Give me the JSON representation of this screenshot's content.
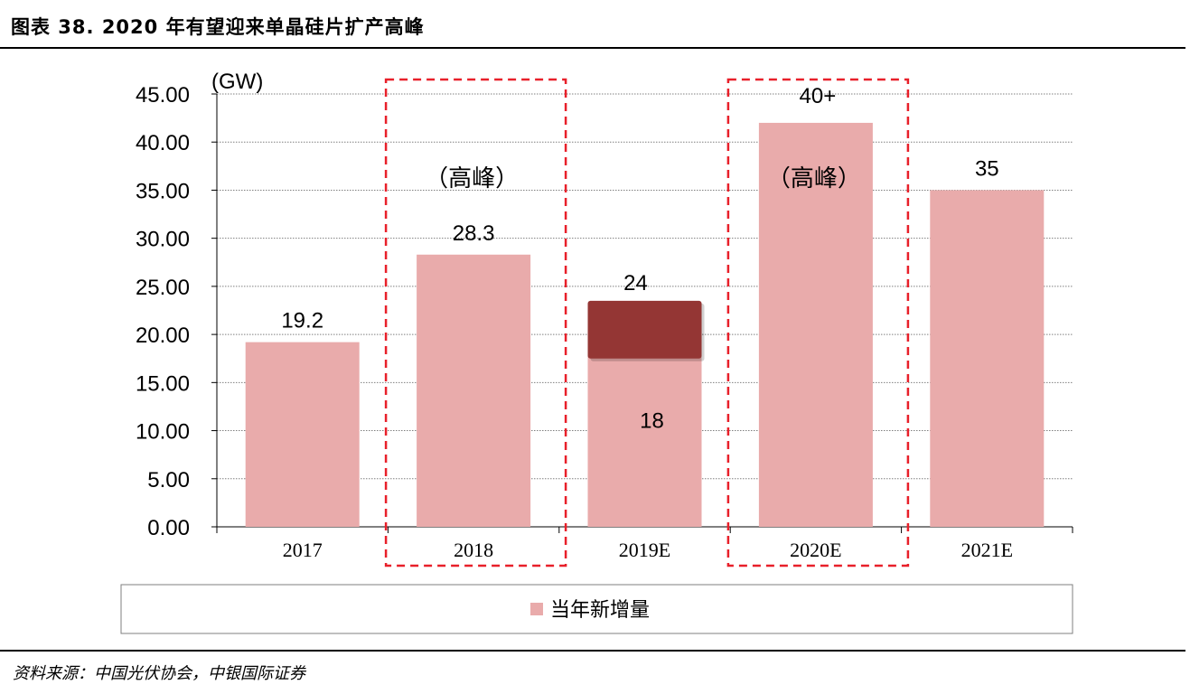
{
  "title": "图表 38. 2020 年有望迎来单晶硅片扩产高峰",
  "source": "资料来源：中国光伏协会，中银国际证券",
  "colors": {
    "bar": "#E9ABAB",
    "overlay": "#943634",
    "highlight_box": "#E8202A",
    "grid": "#7F7F7F"
  },
  "chart_data": {
    "type": "bar",
    "title": "",
    "ylabel": "(GW)",
    "xlabel": "",
    "ylim": [
      0,
      45
    ],
    "yticks": [
      "0.00",
      "5.00",
      "10.00",
      "15.00",
      "20.00",
      "25.00",
      "30.00",
      "35.00",
      "40.00",
      "45.00"
    ],
    "categories": [
      "2017",
      "2018",
      "2019E",
      "2020E",
      "2021E"
    ],
    "series": [
      {
        "name": "当年新增量",
        "values": [
          19.2,
          28.3,
          18,
          42,
          35
        ],
        "labels": [
          "19.2",
          "28.3",
          "18",
          "40+",
          "35"
        ]
      }
    ],
    "overlay": {
      "category": "2019E",
      "from": 17.5,
      "to": 23.5,
      "label": "24"
    },
    "highlights": [
      {
        "category": "2018",
        "label": "（高峰）"
      },
      {
        "category": "2020E",
        "label": "（高峰）"
      }
    ],
    "grid": true,
    "legend": "bottom"
  }
}
